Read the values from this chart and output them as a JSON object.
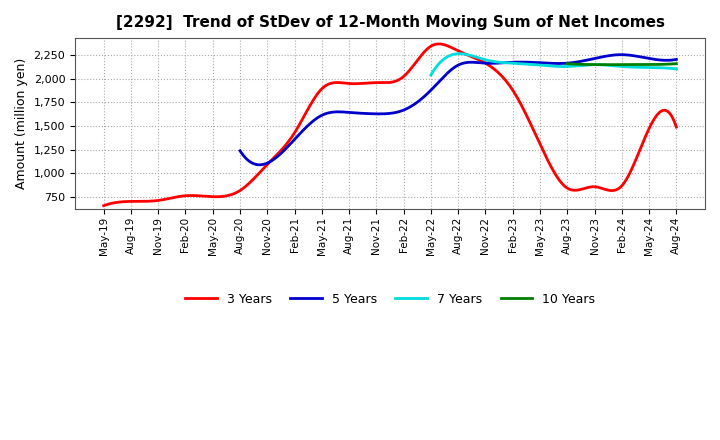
{
  "title": "[2292]  Trend of StDev of 12-Month Moving Sum of Net Incomes",
  "ylabel": "Amount (million yen)",
  "x_labels": [
    "May-19",
    "Aug-19",
    "Nov-19",
    "Feb-20",
    "May-20",
    "Aug-20",
    "Nov-20",
    "Feb-21",
    "May-21",
    "Aug-21",
    "Nov-21",
    "Feb-22",
    "May-22",
    "Aug-22",
    "Nov-22",
    "Feb-23",
    "May-23",
    "Aug-23",
    "Nov-23",
    "Feb-24",
    "May-24",
    "Aug-24"
  ],
  "series": {
    "3 Years": {
      "color": "#FF0000",
      "data": [
        660,
        705,
        715,
        765,
        755,
        820,
        1095,
        1430,
        1895,
        1950,
        1960,
        2025,
        2345,
        2295,
        2165,
        1880,
        1310,
        845,
        860,
        870,
        1475,
        1490
      ]
    },
    "5 Years": {
      "color": "#0000CC",
      "data": [
        null,
        null,
        null,
        null,
        null,
        1240,
        1110,
        1360,
        1615,
        1645,
        1630,
        1670,
        1880,
        2145,
        2165,
        2175,
        2170,
        2165,
        2215,
        2255,
        2215,
        2205
      ]
    },
    "7 Years": {
      "color": "#00DDDD",
      "data": [
        null,
        null,
        null,
        null,
        null,
        null,
        null,
        null,
        null,
        null,
        null,
        null,
        2040,
        2265,
        2200,
        2165,
        2145,
        2130,
        2150,
        2130,
        2120,
        2105
      ]
    },
    "10 Years": {
      "color": "#008000",
      "data": [
        null,
        null,
        null,
        null,
        null,
        null,
        null,
        null,
        null,
        null,
        null,
        null,
        null,
        null,
        null,
        null,
        null,
        2160,
        2150,
        2150,
        2150,
        2160
      ]
    }
  },
  "ylim": [
    620,
    2430
  ],
  "yticks": [
    750,
    1000,
    1250,
    1500,
    1750,
    2000,
    2250
  ],
  "background_color": "#FFFFFF",
  "grid_color": "#AAAAAA"
}
